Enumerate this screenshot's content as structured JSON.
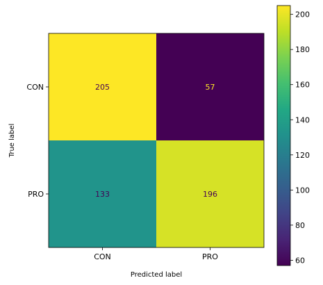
{
  "chart_data": {
    "type": "heatmap",
    "title": "",
    "xlabel": "Predicted label",
    "ylabel": "True label",
    "x_categories": [
      "CON",
      "PRO"
    ],
    "y_categories": [
      "CON",
      "PRO"
    ],
    "values": [
      [
        205,
        57
      ],
      [
        133,
        196
      ]
    ],
    "colormap": "viridis",
    "color_range": [
      57,
      205
    ],
    "colorbar": {
      "ticks": [
        60,
        80,
        100,
        120,
        140,
        160,
        180,
        200
      ]
    },
    "light_text_color": "#fde725",
    "dark_text_color": "#440154"
  }
}
